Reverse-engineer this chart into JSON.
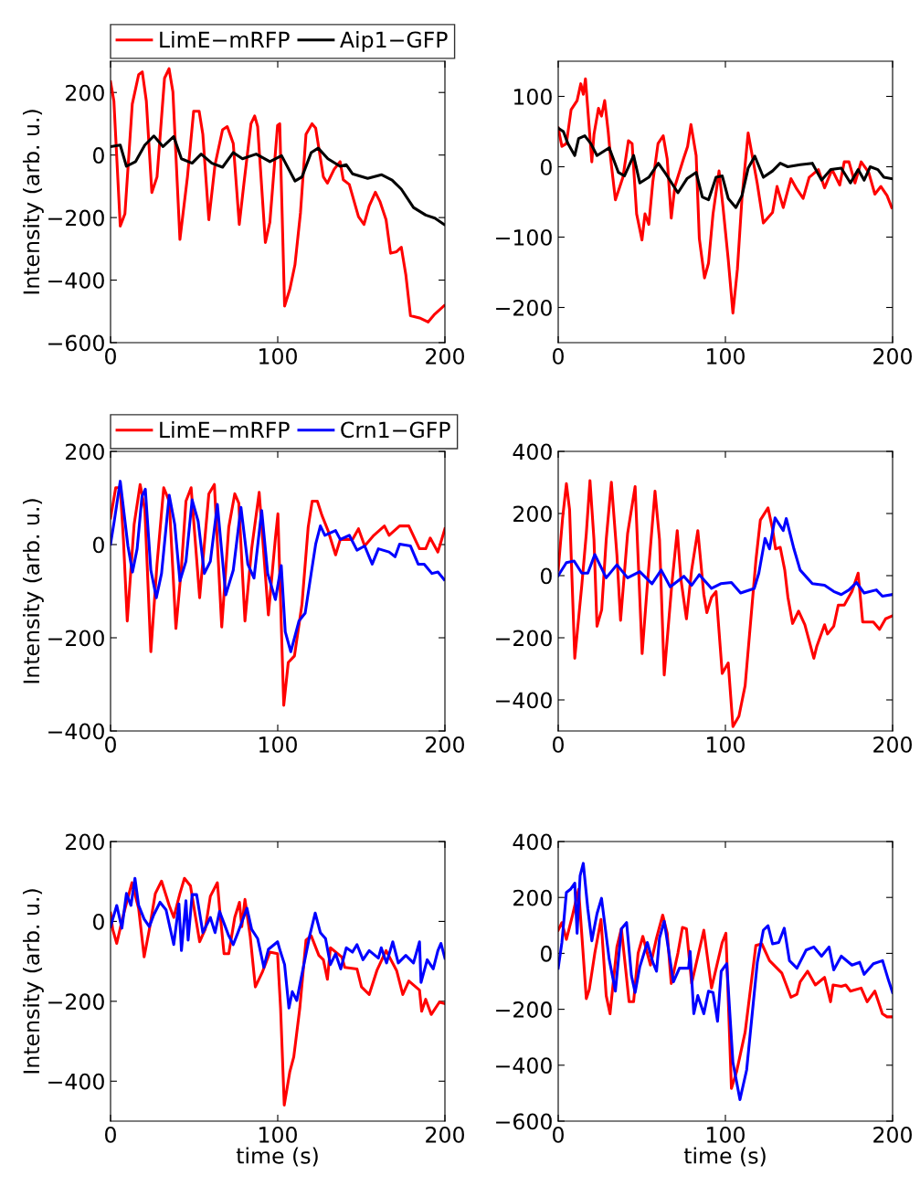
{
  "chart_data": [
    {
      "type": "line",
      "ylabel": "Intensity (arb. u.)",
      "xlim": [
        0,
        200
      ],
      "ylim": [
        -600,
        300
      ],
      "xticks": [
        0,
        100,
        200
      ],
      "yticks": [
        -600,
        -400,
        -200,
        0,
        200
      ],
      "legend": "top",
      "grid": false,
      "series": [
        {
          "name": "LimE−mRFP",
          "color": "#ff0000",
          "x": [
            0,
            2,
            5.8,
            8.6,
            13,
            16.8,
            19,
            21.4,
            24.7,
            27.8,
            32.3,
            35,
            37.3,
            41.5,
            46,
            49.7,
            53,
            55.2,
            58.8,
            62.5,
            67,
            69.8,
            73.4,
            77,
            79.8,
            84,
            86.2,
            88,
            92.6,
            95.3,
            99.9,
            101.2,
            104.1,
            107.2,
            110.3,
            113.6,
            116.9,
            120.5,
            122.7,
            127.3,
            129.7,
            133.7,
            137.3,
            139.2,
            142.8,
            148.3,
            151.6,
            154.7,
            158.4,
            161.1,
            164.8,
            167.5,
            171.1,
            173.9,
            176.6,
            179.4,
            184.8,
            189.9,
            193.9,
            199.5
          ],
          "values": [
            234,
            173,
            -227,
            -188,
            163,
            257,
            266,
            173,
            -120,
            -70,
            246,
            276,
            202,
            -270,
            -70,
            140,
            140,
            66,
            -207,
            -31,
            81,
            91,
            37,
            -222,
            -90,
            100,
            125,
            91,
            -280,
            -215,
            95,
            100,
            -483,
            -430,
            -351,
            -185,
            66,
            100,
            86,
            -70,
            -90,
            -46,
            -21,
            -79,
            -94,
            -197,
            -222,
            -163,
            -119,
            -148,
            -207,
            -314,
            -309,
            -295,
            -382,
            -514,
            -521,
            -534,
            -509,
            -482
          ]
        },
        {
          "name": "Aip1−GFP",
          "color": "#000000",
          "x": [
            0,
            5.8,
            9.5,
            15,
            20.5,
            25.9,
            31.4,
            37.8,
            42.4,
            48.8,
            54.2,
            60.6,
            67,
            73.4,
            78.9,
            87.1,
            95.3,
            102.3,
            110.3,
            114.5,
            120,
            124.2,
            130,
            137.3,
            141,
            144.7,
            153.8,
            162,
            168.4,
            173.9,
            181.2,
            188.5,
            194,
            199.5
          ],
          "values": [
            27,
            32,
            -36,
            -21,
            32,
            61,
            27,
            59,
            -12,
            -26,
            3,
            -26,
            -39,
            8,
            -12,
            3,
            -21,
            -2,
            -83,
            -70,
            8,
            22,
            -12,
            -36,
            -31,
            -60,
            -75,
            -63,
            -80,
            -109,
            -168,
            -192,
            -202,
            -222
          ]
        }
      ]
    },
    {
      "type": "line",
      "xlim": [
        0,
        200
      ],
      "ylim": [
        -250,
        150
      ],
      "xticks": [
        0,
        100,
        200
      ],
      "yticks": [
        -200,
        -100,
        0,
        100
      ],
      "grid": false,
      "series": [
        {
          "color": "#ff0000",
          "x": [
            0,
            2.2,
            4.9,
            7.7,
            11.3,
            13.5,
            15,
            16.3,
            18.3,
            20.1,
            21.4,
            24.1,
            25.9,
            27.8,
            29.9,
            31.4,
            34.2,
            36.9,
            38.7,
            42,
            44.2,
            46.9,
            50.1,
            51.9,
            54.2,
            56.6,
            59.7,
            62.8,
            65.2,
            67.6,
            69.8,
            74.9,
            77.4,
            79.4,
            82.5,
            84.4,
            87.5,
            89.9,
            92.6,
            96.2,
            98.6,
            101.7,
            104.5,
            107.2,
            109.9,
            113.6,
            119,
            122.7,
            128.2,
            130.9,
            134.6,
            139.2,
            142.8,
            146.5,
            150.1,
            155.6,
            159.3,
            163.8,
            168.4,
            171.1,
            173.9,
            177.5,
            181.2,
            185.7,
            189.4,
            193,
            196.7,
            199.5
          ],
          "values": [
            55,
            29,
            33,
            81,
            94,
            118,
            103,
            125,
            63,
            7,
            46,
            83,
            72,
            94,
            50,
            11,
            -47,
            -28,
            -15,
            37,
            33,
            -67,
            -104,
            -67,
            -82,
            -21,
            33,
            44,
            11,
            -73,
            -28,
            11,
            29,
            60,
            16,
            -102,
            -158,
            -137,
            -67,
            -6,
            -58,
            -132,
            -208,
            -145,
            -45,
            48,
            -23,
            -80,
            -65,
            -28,
            -58,
            -17,
            -32,
            -45,
            -15,
            -4,
            -30,
            -4,
            -26,
            7,
            7,
            -23,
            7,
            -8,
            -39,
            -28,
            -41,
            -58
          ]
        },
        {
          "color": "#000000",
          "x": [
            0,
            3.1,
            5.8,
            9.9,
            12.2,
            15.9,
            19.5,
            23.2,
            30.5,
            36,
            39.6,
            45.1,
            48.8,
            54.2,
            59.9,
            64.3,
            71.6,
            77,
            82.5,
            86.2,
            89.9,
            94.4,
            98.1,
            101.7,
            106.3,
            109.9,
            113.6,
            117.6,
            122.7,
            128.2,
            132.8,
            137.3,
            144.7,
            152,
            157.5,
            163,
            169.3,
            174.8,
            179.4,
            183,
            186.6,
            191.2,
            194.8,
            199.5
          ],
          "values": [
            55,
            50,
            33,
            16,
            40,
            44,
            33,
            16,
            27,
            -8,
            -13,
            16,
            -23,
            -15,
            5,
            -10,
            -37,
            -17,
            -8,
            -43,
            -47,
            -15,
            -13,
            -45,
            -58,
            -41,
            -2,
            15,
            -15,
            -6,
            5,
            0,
            3,
            5,
            -19,
            -4,
            -2,
            -23,
            -4,
            -19,
            0,
            -4,
            -15,
            -17
          ]
        }
      ]
    },
    {
      "type": "line",
      "ylabel": "Intensity (arb. u.)",
      "xlim": [
        0,
        200
      ],
      "ylim": [
        -400,
        200
      ],
      "xticks": [
        0,
        100,
        200
      ],
      "yticks": [
        -400,
        -200,
        0,
        200
      ],
      "legend": "top",
      "grid": false,
      "series": [
        {
          "name": "LimE−mRFP",
          "color": "#ff0000",
          "x": [
            0,
            3.1,
            5.8,
            7.7,
            10,
            14.1,
            17.7,
            20.5,
            24.1,
            27.8,
            31.8,
            35.1,
            39.1,
            42.4,
            45.1,
            48.2,
            53.3,
            58.8,
            62.1,
            66.5,
            70.7,
            74.3,
            76.7,
            80.4,
            84.4,
            88.9,
            94.4,
            98.6,
            100.1,
            103.6,
            106.3,
            110,
            114.5,
            118.2,
            120.6,
            123.7,
            126.4,
            130.1,
            134.6,
            137.4,
            144.7,
            148.3,
            152,
            157.5,
            163.8,
            166.6,
            172.9,
            178.4,
            184.8,
            188.5,
            191.2,
            195.8,
            200
          ],
          "values": [
            57,
            122,
            122,
            11,
            -164,
            43,
            129,
            76,
            -230,
            -42,
            122,
            93,
            -180,
            -49,
            93,
            122,
            -114,
            109,
            129,
            -177,
            37,
            109,
            89,
            -164,
            -9,
            112,
            -151,
            14,
            66,
            -345,
            -253,
            -239,
            -128,
            37,
            93,
            93,
            63,
            30,
            -22,
            11,
            11,
            34,
            -3,
            20,
            40,
            20,
            40,
            40,
            -9,
            -9,
            14,
            -16,
            34
          ]
        },
        {
          "name": "Crn1−GFP",
          "color": "#0000ff",
          "x": [
            0,
            2.2,
            5.8,
            10.4,
            13.1,
            15.9,
            18.8,
            20.8,
            24.1,
            27.4,
            30.5,
            35.1,
            38.4,
            41.5,
            45.1,
            48.8,
            52.4,
            56.1,
            59.7,
            63.9,
            68.9,
            73.4,
            78,
            82.1,
            85.8,
            90.4,
            94,
            98.6,
            102.1,
            104.5,
            107.8,
            112.7,
            116.4,
            120,
            122.7,
            125.5,
            128.2,
            134.6,
            137.4,
            142.8,
            147.4,
            152,
            156.5,
            160.2,
            166.6,
            170.2,
            172.9,
            179.4,
            184,
            187.6,
            192.2,
            195.8,
            199.5
          ],
          "values": [
            1,
            50,
            136,
            -3,
            -59,
            -9,
            103,
            119,
            -55,
            -114,
            -62,
            106,
            43,
            -78,
            -36,
            96,
            50,
            -62,
            -36,
            86,
            -108,
            -55,
            80,
            -42,
            -72,
            73,
            -62,
            -118,
            -45,
            -187,
            -230,
            -164,
            -147,
            -62,
            1,
            40,
            20,
            30,
            11,
            20,
            -12,
            -3,
            -42,
            -9,
            -16,
            -26,
            1,
            -3,
            -42,
            -42,
            -62,
            -59,
            -75
          ]
        }
      ]
    },
    {
      "type": "line",
      "xlim": [
        0,
        200
      ],
      "ylim": [
        -500,
        400
      ],
      "xticks": [
        0,
        100,
        200
      ],
      "yticks": [
        -400,
        -200,
        0,
        200,
        400
      ],
      "grid": false,
      "series": [
        {
          "color": "#ff0000",
          "x": [
            0,
            2.6,
            4.9,
            6.8,
            9.9,
            14.1,
            16.8,
            19,
            21.4,
            23.2,
            26,
            28.7,
            31.8,
            35.1,
            37.3,
            41.5,
            46,
            50.2,
            53.3,
            57.9,
            60.6,
            63.4,
            67.9,
            71.2,
            73.4,
            76.7,
            79.8,
            83.5,
            87.1,
            88.9,
            91.7,
            94.4,
            98.1,
            101.7,
            104.5,
            108.1,
            111.8,
            115.4,
            118.2,
            120.9,
            125.5,
            128.2,
            130,
            132.8,
            135.5,
            137.4,
            140.2,
            143.8,
            147.5,
            152.9,
            154.7,
            159.3,
            161.1,
            164.8,
            167.5,
            171.1,
            175.7,
            179.4,
            182.1,
            184.8,
            188.5,
            192.2,
            195.8,
            200
          ],
          "values": [
            18,
            184,
            296,
            213,
            -266,
            -31,
            135,
            306,
            115,
            -163,
            -110,
            115,
            301,
            67,
            -144,
            135,
            287,
            -251,
            -31,
            272,
            115,
            -320,
            -31,
            145,
            -12,
            -139,
            18,
            145,
            -61,
            -119,
            -70,
            -51,
            -315,
            -281,
            -486,
            -452,
            -354,
            -129,
            47,
            179,
            218,
            150,
            86,
            91,
            18,
            -70,
            -154,
            -114,
            -158,
            -266,
            -227,
            -158,
            -188,
            -163,
            -95,
            -95,
            -51,
            8,
            -149,
            -149,
            -149,
            -173,
            -139,
            -129
          ]
        },
        {
          "color": "#0000ff",
          "x": [
            0,
            4.9,
            9.5,
            14.1,
            17.7,
            21.9,
            28.7,
            35.1,
            41.5,
            48.8,
            56.1,
            61.6,
            67,
            75.2,
            79.8,
            84.4,
            91.7,
            97.2,
            103.6,
            109.1,
            117.3,
            120,
            123.7,
            126.4,
            129.7,
            134.6,
            136.4,
            141,
            144.7,
            152,
            159.3,
            164.8,
            169.3,
            173.9,
            178.4,
            183,
            190.3,
            193.9,
            199.5
          ],
          "values": [
            0,
            42,
            47,
            8,
            8,
            68,
            -7,
            35,
            -7,
            13,
            -26,
            18,
            -36,
            -2,
            -31,
            3,
            -41,
            -26,
            -22,
            -56,
            -41,
            8,
            120,
            86,
            186,
            145,
            184,
            86,
            18,
            -26,
            -31,
            -51,
            -61,
            -46,
            -22,
            -56,
            -46,
            -66,
            -61
          ]
        }
      ]
    },
    {
      "type": "line",
      "ylabel": "Intensity (arb. u.)",
      "xlabel": "time (s)",
      "xlim": [
        0,
        200
      ],
      "ylim": [
        -500,
        200
      ],
      "xticks": [
        0,
        100,
        200
      ],
      "yticks": [
        -400,
        -200,
        0,
        200
      ],
      "grid": false,
      "series": [
        {
          "color": "#ff0000",
          "x": [
            0,
            1.3,
            3.7,
            7.7,
            12.8,
            16.8,
            20.1,
            23.2,
            26.8,
            30.5,
            35.1,
            37.8,
            41.5,
            44.2,
            47.8,
            50.6,
            53.3,
            56.6,
            59.7,
            63.9,
            65.2,
            67.9,
            70.7,
            74.3,
            77.1,
            78.5,
            80.4,
            83.5,
            86.6,
            90.8,
            95.3,
            99.9,
            101.7,
            103.9,
            107.2,
            109.6,
            113.2,
            116.9,
            120,
            124.6,
            127.3,
            129.7,
            131.5,
            138.3,
            140.1,
            147.4,
            150.1,
            154.7,
            159.3,
            164.8,
            171.1,
            174.8,
            178.4,
            184.8,
            186.1,
            188.5,
            191.8,
            196.7,
            200
          ],
          "values": [
            21,
            -20,
            -55,
            17,
            97,
            33,
            -89,
            -20,
            70,
            101,
            40,
            10,
            70,
            108,
            89,
            17,
            -51,
            -20,
            63,
            97,
            33,
            -81,
            -81,
            10,
            48,
            -13,
            55,
            -36,
            -164,
            -127,
            -77,
            -81,
            -217,
            -460,
            -377,
            -339,
            -217,
            -47,
            -36,
            -85,
            -96,
            -145,
            -66,
            -89,
            -115,
            -119,
            -164,
            -183,
            -123,
            -73,
            -123,
            -183,
            -149,
            -172,
            -225,
            -195,
            -233,
            -202,
            -206
          ]
        },
        {
          "color": "#0000ff",
          "x": [
            0,
            3.7,
            6.8,
            9.5,
            12.2,
            14.6,
            16.8,
            20.1,
            23.2,
            25.9,
            29.6,
            33.2,
            37.8,
            40.9,
            42.4,
            45.1,
            46.4,
            48.8,
            51.5,
            55.2,
            59.7,
            62.5,
            65.2,
            67.9,
            70.7,
            73.4,
            76.2,
            81.6,
            84.4,
            88,
            91.7,
            94.4,
            99.9,
            101.7,
            104.1,
            106.7,
            108.7,
            111.4,
            114,
            119.1,
            122.4,
            125.5,
            128.6,
            131.5,
            134.6,
            137.7,
            141,
            144.7,
            147.4,
            151,
            154.7,
            160.2,
            161.9,
            165.1,
            168.8,
            172.1,
            176.6,
            181.2,
            184.8,
            185.7,
            189.4,
            193,
            195.8,
            197.6,
            200
          ],
          "values": [
            -13,
            40,
            -17,
            70,
            40,
            108,
            40,
            6,
            -13,
            17,
            48,
            29,
            -58,
            44,
            -73,
            52,
            -47,
            67,
            67,
            -28,
            10,
            -28,
            25,
            -5,
            -36,
            -58,
            -28,
            33,
            -20,
            -43,
            -115,
            -70,
            -51,
            -77,
            -108,
            -217,
            -176,
            -198,
            -142,
            -36,
            21,
            -28,
            -43,
            -108,
            -81,
            -119,
            -66,
            -77,
            -58,
            -96,
            -73,
            -92,
            -66,
            -104,
            -51,
            -104,
            -85,
            -104,
            -51,
            -153,
            -96,
            -119,
            -73,
            -55,
            -92
          ]
        }
      ]
    },
    {
      "type": "line",
      "xlabel": "time (s)",
      "xlim": [
        0,
        200
      ],
      "ylim": [
        -600,
        400
      ],
      "xticks": [
        0,
        100,
        200
      ],
      "yticks": [
        -600,
        -400,
        -200,
        0,
        200,
        400
      ],
      "grid": false,
      "series": [
        {
          "color": "#ff0000",
          "x": [
            0,
            2.2,
            4.9,
            8.6,
            12.2,
            16.8,
            18.6,
            21.9,
            25.6,
            28.7,
            31,
            35.1,
            37.8,
            42.4,
            45.1,
            47.8,
            50.6,
            55.2,
            58.8,
            62.5,
            65.2,
            67.6,
            71.6,
            74.3,
            76.7,
            79.8,
            87.1,
            91.7,
            98.1,
            100.3,
            103.6,
            106.7,
            111.8,
            118.2,
            121.8,
            126.4,
            133.7,
            139.2,
            142.8,
            144.7,
            149.2,
            153.8,
            159.3,
            162.9,
            164.4,
            169.3,
            172,
            174.8,
            181.2,
            184.8,
            189.4,
            193.9,
            196.7,
            200
          ],
          "values": [
            83,
            110,
            50,
            137,
            229,
            -162,
            -129,
            1,
            121,
            -151,
            -216,
            23,
            88,
            -173,
            -173,
            1,
            61,
            -42,
            55,
            137,
            72,
            -108,
            1,
            93,
            88,
            -108,
            83,
            -124,
            39,
            72,
            -483,
            -423,
            -282,
            28,
            34,
            -26,
            -70,
            -157,
            -146,
            -102,
            -64,
            -113,
            -86,
            -173,
            -113,
            -118,
            -113,
            -135,
            -124,
            -173,
            -135,
            -216,
            -227,
            -227
          ]
        },
        {
          "color": "#0000ff",
          "x": [
            0,
            2.2,
            4.9,
            7.3,
            9.9,
            11.3,
            13.1,
            15,
            17.7,
            20.1,
            23.2,
            25.9,
            30.5,
            34.2,
            37.8,
            40.9,
            43.8,
            46,
            48.8,
            53.3,
            56.6,
            58.8,
            60.6,
            63.4,
            68.9,
            72.5,
            78,
            78.9,
            81.1,
            83.5,
            87.1,
            89.9,
            92.6,
            95.3,
            97.5,
            100.8,
            104.5,
            108.7,
            112.7,
            119.1,
            122.7,
            125.5,
            128.2,
            131.9,
            135.2,
            138.3,
            142.8,
            148.3,
            152.9,
            157.5,
            162,
            164.8,
            169.3,
            175.7,
            180.3,
            183,
            188.5,
            194,
            197.6,
            200
          ],
          "values": [
            -53,
            39,
            218,
            229,
            251,
            72,
            278,
            322,
            159,
            45,
            142,
            197,
            -21,
            -135,
            88,
            110,
            -80,
            -140,
            -48,
            39,
            -32,
            -64,
            55,
            115,
            -102,
            -53,
            -53,
            7,
            -216,
            -151,
            -216,
            -135,
            -140,
            -243,
            -64,
            -37,
            -390,
            -523,
            -417,
            -32,
            83,
            99,
            34,
            39,
            90,
            -26,
            -53,
            12,
            23,
            -10,
            23,
            -59,
            -10,
            -42,
            -32,
            -75,
            -37,
            -26,
            -97,
            -140
          ]
        }
      ]
    }
  ]
}
